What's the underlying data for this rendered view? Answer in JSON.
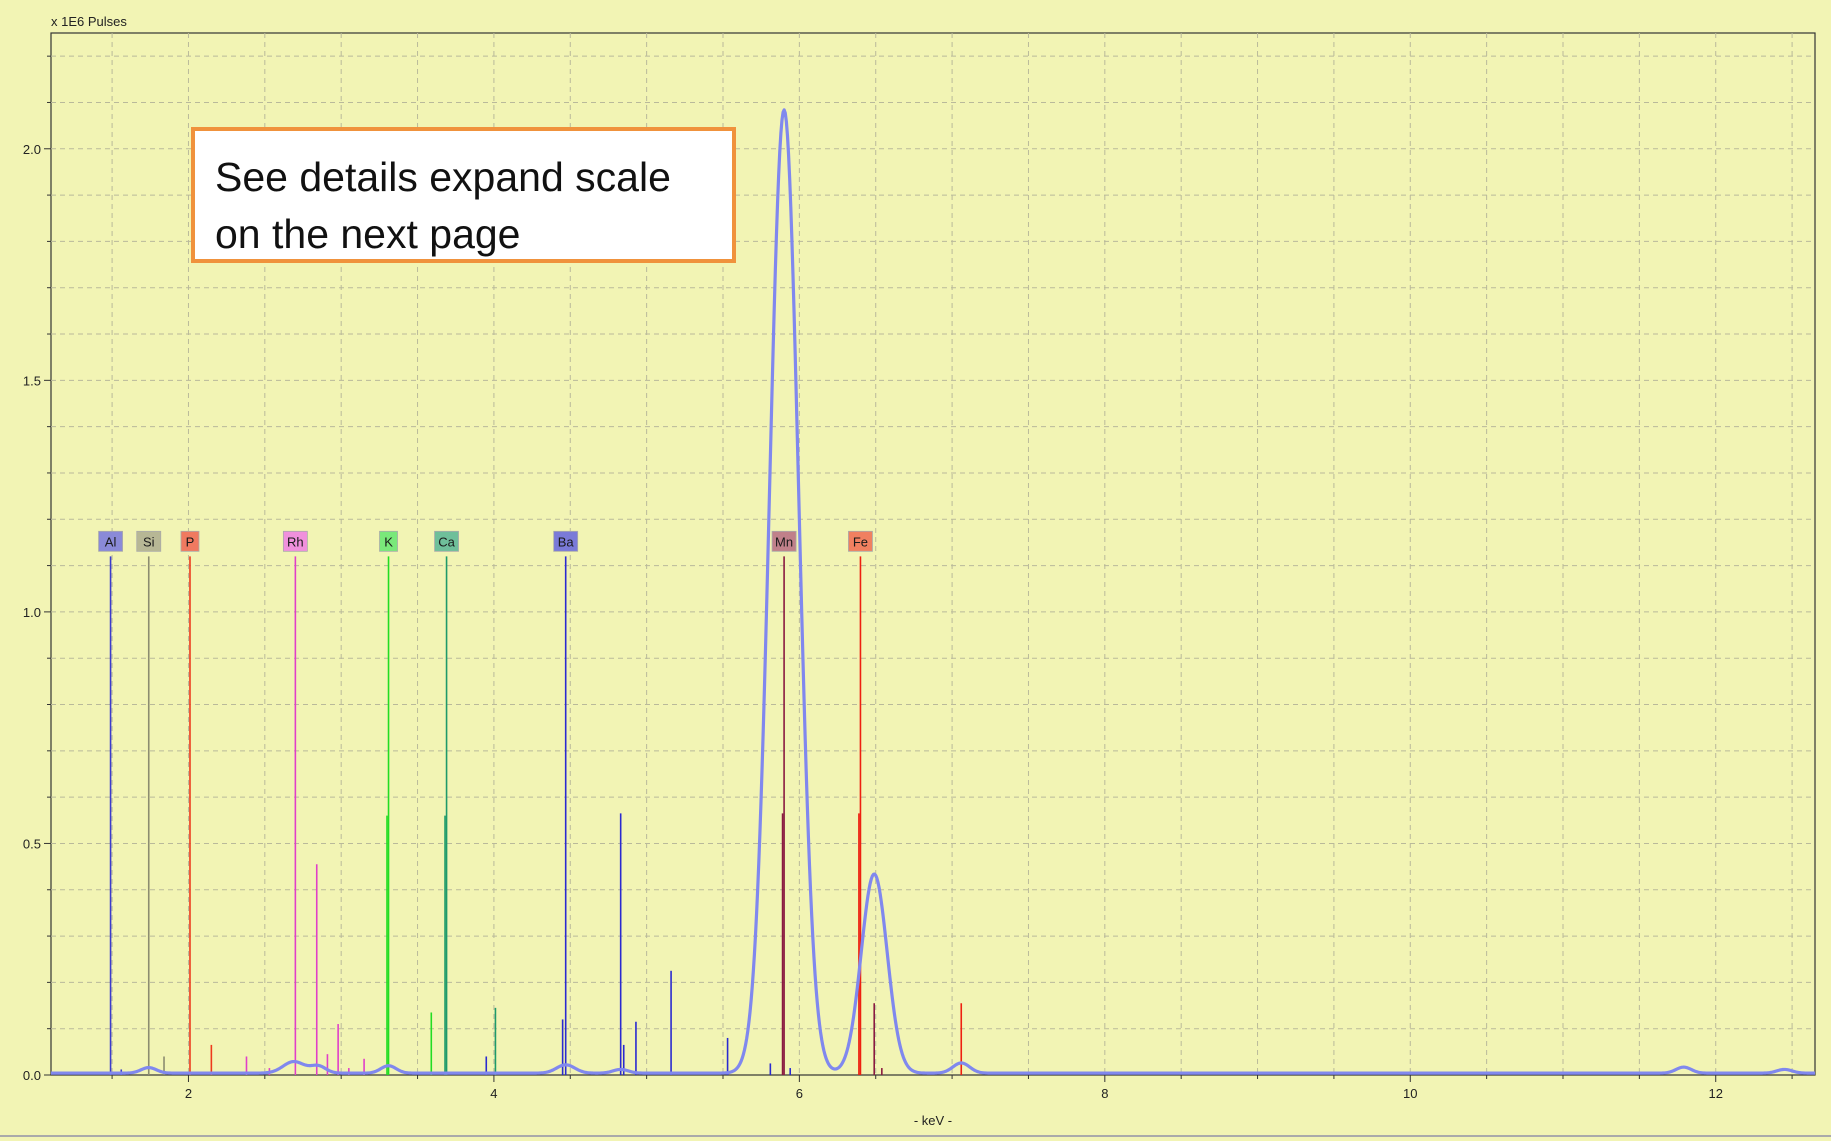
{
  "chart_data": {
    "type": "line",
    "ylabel": "x 1E6 Pulses",
    "xlabel": "- keV -",
    "xlim": [
      1.1,
      12.65
    ],
    "ylim": [
      0,
      2.25
    ],
    "x_ticks": [
      2,
      4,
      6,
      8,
      10,
      12
    ],
    "y_ticks": [
      0.0,
      0.5,
      1.0,
      1.5,
      2.0
    ],
    "y_tick_labels": [
      "0.0",
      "0.5",
      "1.0",
      "1.5",
      "2.0"
    ],
    "grid": true,
    "spectrum_color": "#8088ee",
    "spectrum": {
      "baseline": 0.004,
      "peaks": [
        {
          "x": 1.74,
          "height": 0.012,
          "width": 0.05
        },
        {
          "x": 2.69,
          "height": 0.025,
          "width": 0.07
        },
        {
          "x": 2.85,
          "height": 0.015,
          "width": 0.05
        },
        {
          "x": 3.31,
          "height": 0.016,
          "width": 0.05
        },
        {
          "x": 4.47,
          "height": 0.018,
          "width": 0.06
        },
        {
          "x": 4.83,
          "height": 0.008,
          "width": 0.05
        },
        {
          "x": 5.9,
          "height": 2.08,
          "width": 0.095
        },
        {
          "x": 6.49,
          "height": 0.43,
          "width": 0.085
        },
        {
          "x": 7.06,
          "height": 0.022,
          "width": 0.055
        },
        {
          "x": 11.79,
          "height": 0.013,
          "width": 0.05
        },
        {
          "x": 12.45,
          "height": 0.008,
          "width": 0.05
        }
      ]
    },
    "element_markers": [
      {
        "label": "Al",
        "x": 1.49,
        "color": "#3b3bcc",
        "box": "#8a8ad8"
      },
      {
        "label": "Si",
        "x": 1.74,
        "color": "#8c8c70",
        "box": "#b7b795"
      },
      {
        "label": "P",
        "x": 2.01,
        "color": "#ee3a1c",
        "box": "#f07a60"
      },
      {
        "label": "Rh",
        "x": 2.7,
        "color": "#e040c8",
        "box": "#f090dc"
      },
      {
        "label": "K",
        "x": 3.31,
        "color": "#22dd22",
        "box": "#7ae87a"
      },
      {
        "label": "Ca",
        "x": 3.69,
        "color": "#1f9a6a",
        "box": "#6fbf9a"
      },
      {
        "label": "Ba",
        "x": 4.47,
        "color": "#2a2ad0",
        "box": "#7a7ad8"
      },
      {
        "label": "Mn",
        "x": 5.9,
        "color": "#8a1a40",
        "box": "#c0808a"
      },
      {
        "label": "Fe",
        "x": 6.4,
        "color": "#ee2010",
        "box": "#f08060"
      }
    ],
    "marker_line_top": 1.12,
    "minor_lines": [
      {
        "x": 1.56,
        "y": 0.012,
        "color": "#3b3bcc"
      },
      {
        "x": 1.84,
        "y": 0.04,
        "color": "#8c8c70"
      },
      {
        "x": 2.15,
        "y": 0.065,
        "color": "#ee3a1c"
      },
      {
        "x": 2.38,
        "y": 0.04,
        "color": "#e040c8"
      },
      {
        "x": 2.53,
        "y": 0.015,
        "color": "#e040c8"
      },
      {
        "x": 2.84,
        "y": 0.455,
        "color": "#e040c8"
      },
      {
        "x": 2.91,
        "y": 0.045,
        "color": "#e040c8"
      },
      {
        "x": 2.98,
        "y": 0.11,
        "color": "#e040c8"
      },
      {
        "x": 3.05,
        "y": 0.015,
        "color": "#e040c8"
      },
      {
        "x": 3.15,
        "y": 0.035,
        "color": "#e040c8"
      },
      {
        "x": 3.3,
        "y": 0.56,
        "color": "#22dd22"
      },
      {
        "x": 3.59,
        "y": 0.135,
        "color": "#22dd22"
      },
      {
        "x": 3.68,
        "y": 0.56,
        "color": "#1f9a6a"
      },
      {
        "x": 4.01,
        "y": 0.145,
        "color": "#1f9a6a"
      },
      {
        "x": 3.95,
        "y": 0.04,
        "color": "#2a2ad0"
      },
      {
        "x": 4.45,
        "y": 0.12,
        "color": "#2a2ad0"
      },
      {
        "x": 4.83,
        "y": 0.565,
        "color": "#2a2ad0"
      },
      {
        "x": 4.85,
        "y": 0.065,
        "color": "#2a2ad0"
      },
      {
        "x": 4.93,
        "y": 0.115,
        "color": "#2a2ad0"
      },
      {
        "x": 5.16,
        "y": 0.225,
        "color": "#2a2ad0"
      },
      {
        "x": 5.53,
        "y": 0.08,
        "color": "#2a2ad0"
      },
      {
        "x": 5.81,
        "y": 0.025,
        "color": "#2a2ad0"
      },
      {
        "x": 5.89,
        "y": 0.565,
        "color": "#8a1a40"
      },
      {
        "x": 5.94,
        "y": 0.015,
        "color": "#2a2ad0"
      },
      {
        "x": 6.39,
        "y": 0.565,
        "color": "#ee2010"
      },
      {
        "x": 6.49,
        "y": 0.155,
        "color": "#8a1a40"
      },
      {
        "x": 6.54,
        "y": 0.015,
        "color": "#8a1a40"
      },
      {
        "x": 7.06,
        "y": 0.155,
        "color": "#ee2010"
      }
    ]
  },
  "callout": {
    "line1": "See details expand scale",
    "line2": "on the next page"
  }
}
